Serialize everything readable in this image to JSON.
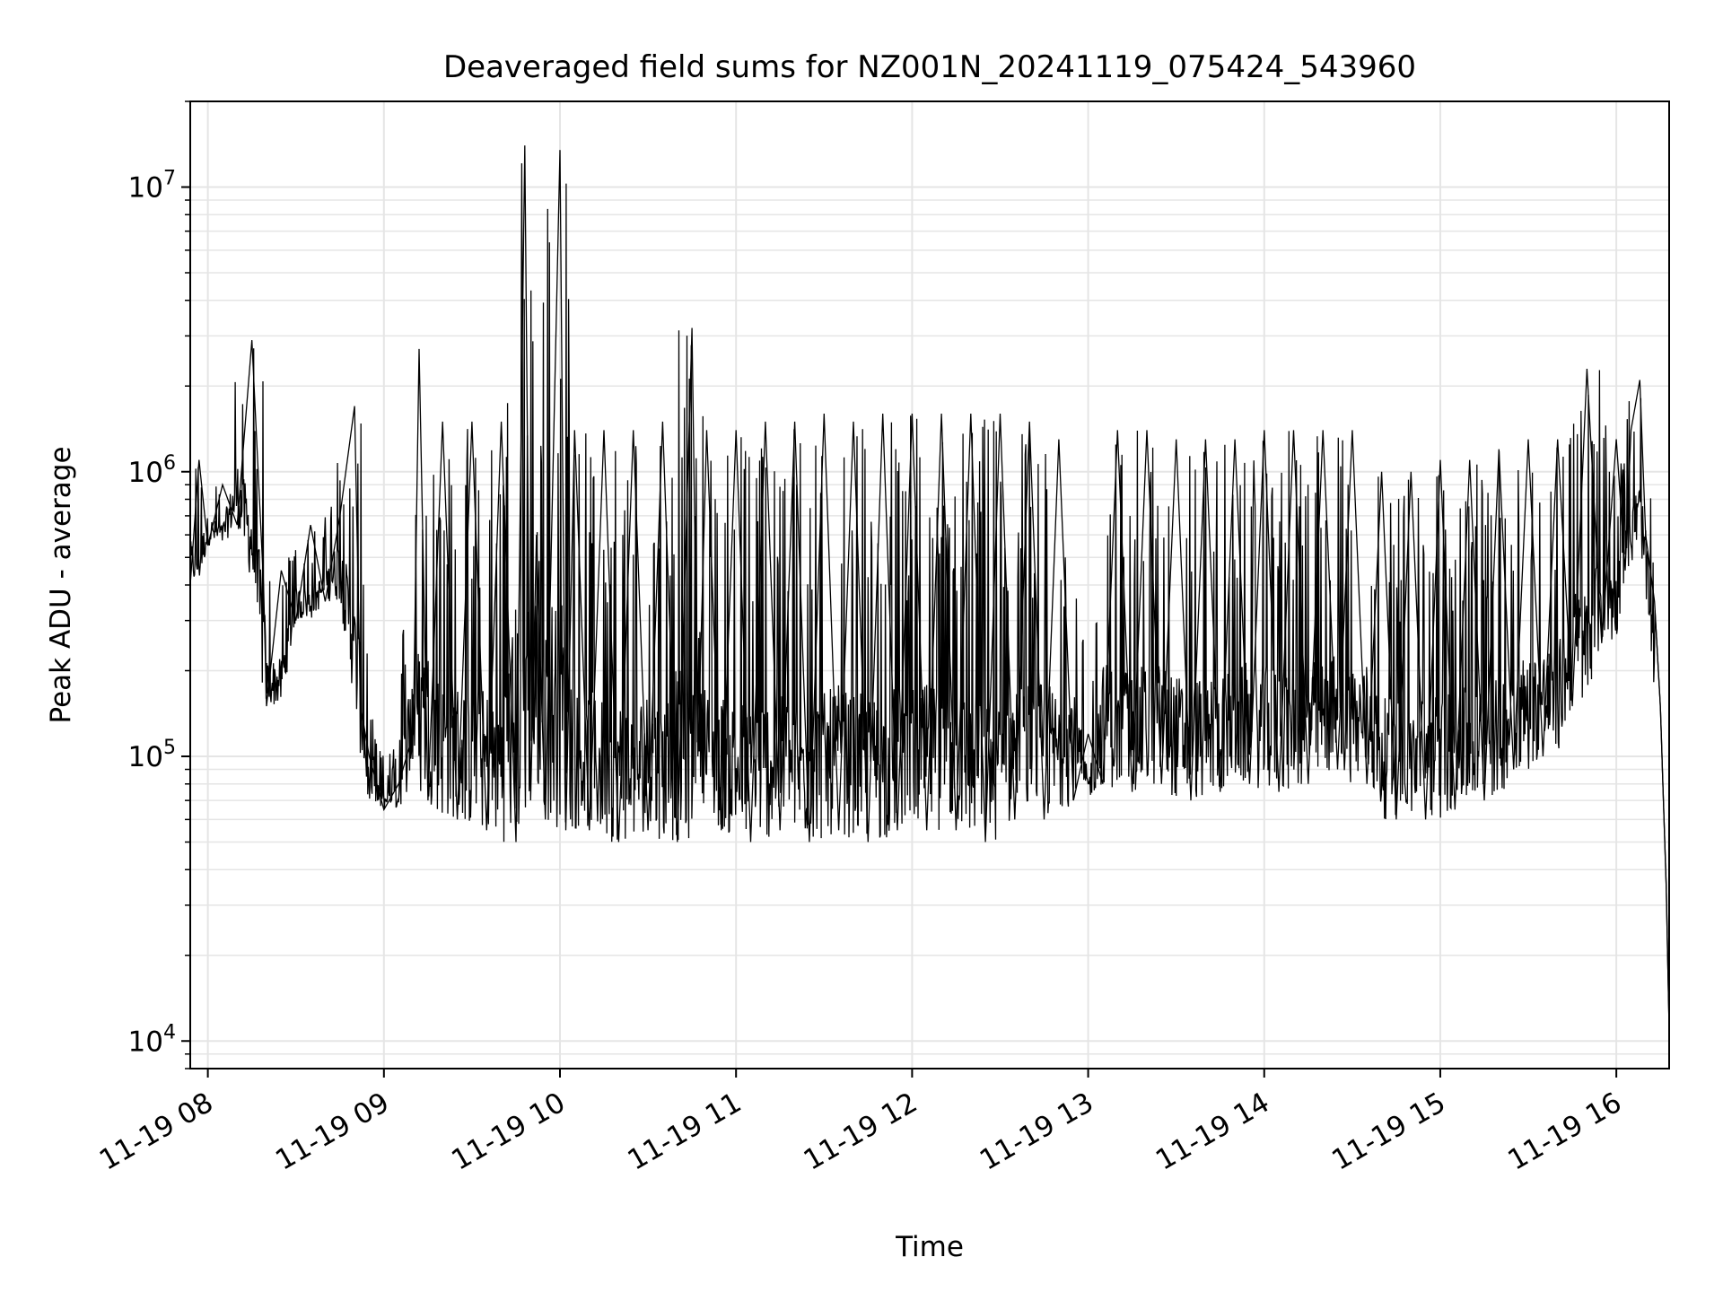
{
  "chart_data": {
    "type": "line",
    "title": "Deaveraged field sums for NZ001N_20241119_075424_543960",
    "xlabel": "Time",
    "ylabel": "Peak ADU - average",
    "yscale": "log",
    "ylim": [
      8000,
      20000000
    ],
    "xlim": [
      "11-19 07:54",
      "11-19 16:18"
    ],
    "grid": true,
    "line_color": "#000000",
    "grid_color": "#e5e5e5",
    "x_ticks": [
      {
        "label": "11-19 08",
        "value": "08:00"
      },
      {
        "label": "11-19 09",
        "value": "09:00"
      },
      {
        "label": "11-19 10",
        "value": "10:00"
      },
      {
        "label": "11-19 11",
        "value": "11:00"
      },
      {
        "label": "11-19 12",
        "value": "12:00"
      },
      {
        "label": "11-19 13",
        "value": "13:00"
      },
      {
        "label": "11-19 14",
        "value": "14:00"
      },
      {
        "label": "11-19 15",
        "value": "15:00"
      },
      {
        "label": "11-19 16",
        "value": "16:00"
      }
    ],
    "y_ticks": [
      {
        "base": "10",
        "exp": "4",
        "value": 10000
      },
      {
        "base": "10",
        "exp": "5",
        "value": 100000
      },
      {
        "base": "10",
        "exp": "6",
        "value": 1000000
      },
      {
        "base": "10",
        "exp": "7",
        "value": 10000000
      }
    ],
    "series": [
      {
        "x": [
          "07:54",
          "07:57",
          "08:00",
          "08:05",
          "08:10",
          "08:15",
          "08:19",
          "08:20",
          "08:25",
          "08:30",
          "08:35",
          "08:40",
          "08:45",
          "08:50",
          "08:52",
          "08:55",
          "09:00",
          "09:05",
          "09:10",
          "09:12",
          "09:15",
          "09:20",
          "09:25",
          "09:30",
          "09:35",
          "09:40",
          "09:45",
          "09:48",
          "09:50",
          "09:52",
          "09:55",
          "10:00",
          "10:02",
          "10:05",
          "10:10",
          "10:15",
          "10:20",
          "10:25",
          "10:30",
          "10:35",
          "10:40",
          "10:45",
          "10:47",
          "10:50",
          "10:55",
          "11:00",
          "11:05",
          "11:10",
          "11:15",
          "11:20",
          "11:25",
          "11:30",
          "11:35",
          "11:40",
          "11:45",
          "11:50",
          "11:55",
          "12:00",
          "12:05",
          "12:10",
          "12:15",
          "12:20",
          "12:25",
          "12:30",
          "12:35",
          "12:40",
          "12:45",
          "12:50",
          "12:55",
          "13:00",
          "13:05",
          "13:10",
          "13:15",
          "13:20",
          "13:25",
          "13:30",
          "13:35",
          "13:40",
          "13:45",
          "13:50",
          "13:55",
          "14:00",
          "14:05",
          "14:10",
          "14:15",
          "14:20",
          "14:25",
          "14:30",
          "14:35",
          "14:40",
          "14:45",
          "14:50",
          "14:55",
          "15:00",
          "15:05",
          "15:10",
          "15:15",
          "15:20",
          "15:25",
          "15:30",
          "15:35",
          "15:40",
          "15:45",
          "15:50",
          "15:55",
          "16:00",
          "16:03",
          "16:05",
          "16:08",
          "16:10",
          "16:13",
          "16:15",
          "16:17",
          "16:18"
        ],
        "y": [
          400000,
          1100000,
          550000,
          900000,
          650000,
          2900000,
          400000,
          150000,
          450000,
          300000,
          650000,
          350000,
          700000,
          1700000,
          150000,
          100000,
          65000,
          80000,
          120000,
          2700000,
          70000,
          1500000,
          60000,
          1500000,
          55000,
          1500000,
          50000,
          14000000,
          70000,
          600000,
          60000,
          13500000,
          55000,
          1400000,
          55000,
          1400000,
          50000,
          1400000,
          55000,
          1500000,
          50000,
          3200000,
          100000,
          1400000,
          55000,
          1400000,
          50000,
          1500000,
          55000,
          1500000,
          50000,
          1600000,
          55000,
          1500000,
          50000,
          1600000,
          55000,
          1600000,
          55000,
          1600000,
          55000,
          1600000,
          50000,
          1600000,
          60000,
          1500000,
          60000,
          1300000,
          70000,
          120000,
          80000,
          1400000,
          75000,
          1400000,
          80000,
          1300000,
          70000,
          1300000,
          75000,
          1300000,
          80000,
          1400000,
          75000,
          1400000,
          80000,
          1400000,
          90000,
          1400000,
          80000,
          1000000,
          60000,
          1000000,
          60000,
          1100000,
          65000,
          1100000,
          70000,
          1200000,
          90000,
          1300000,
          100000,
          1300000,
          150000,
          2300000,
          250000,
          1300000,
          450000,
          1400000,
          2100000,
          600000,
          350000,
          150000,
          35000,
          11000
        ]
      }
    ]
  }
}
